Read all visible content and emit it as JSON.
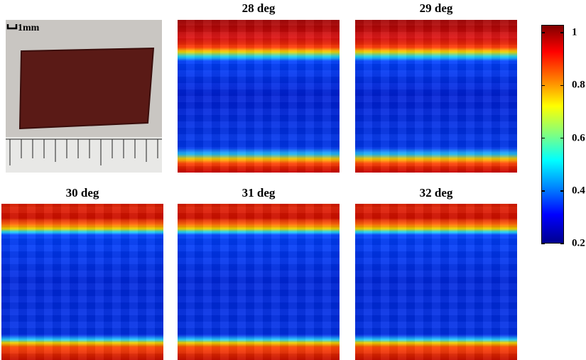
{
  "photo": {
    "scale_label": "1mm"
  },
  "panels": [
    {
      "title": "28 deg"
    },
    {
      "title": "29 deg"
    },
    {
      "title": "30 deg"
    },
    {
      "title": "31 deg"
    },
    {
      "title": "32 deg"
    }
  ],
  "colorbar": {
    "lim": [
      0.2,
      1.03
    ],
    "ticks": [
      0.2,
      0.4,
      0.6,
      0.8,
      1
    ]
  }
}
